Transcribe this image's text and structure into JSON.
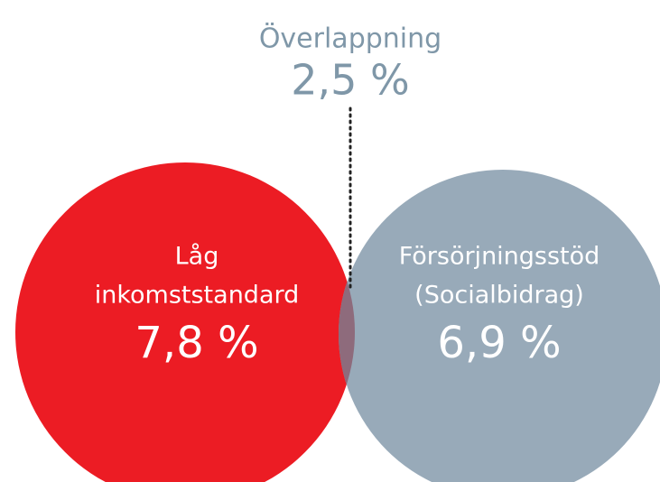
{
  "overlap": {
    "label": "Överlappning",
    "value": "2,5 %",
    "color": "#8e6b7c"
  },
  "sets": [
    {
      "label_lines": [
        "Låg",
        "inkomststandard"
      ],
      "value": "7,8 %",
      "color": "#ec1c24"
    },
    {
      "label_lines": [
        "Försörjningsstöd",
        "(Socialbidrag)"
      ],
      "value": "6,9 %",
      "color": "#98aab9"
    }
  ]
}
